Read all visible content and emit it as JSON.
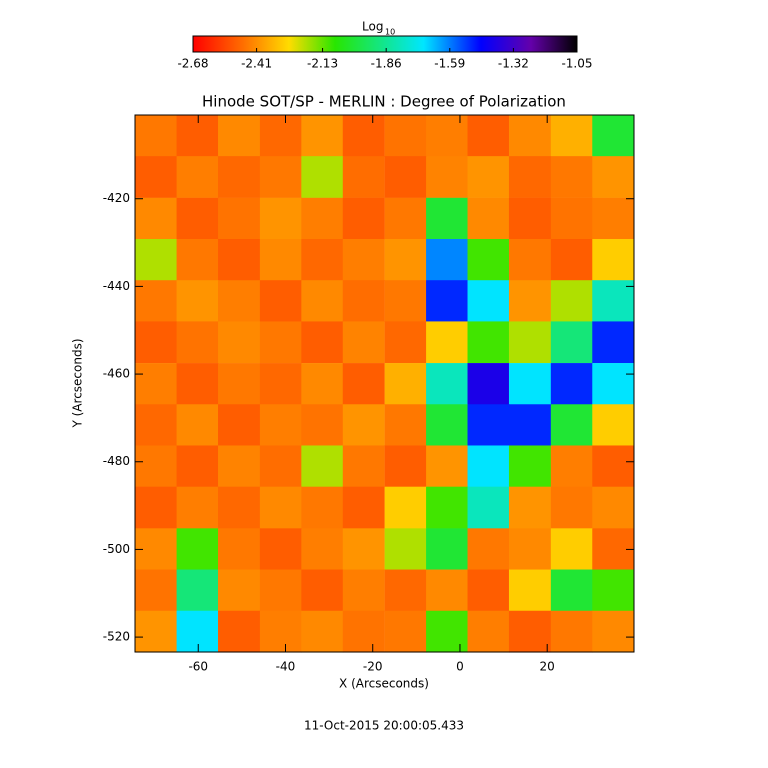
{
  "chart_data": {
    "type": "heatmap",
    "title": "Hinode SOT/SP - MERLIN : Degree of Polarization",
    "x_label": "X (Arcseconds)",
    "y_label": "Y (Arcseconds)",
    "colorbar_label": {
      "base": "Log",
      "subscript": "10"
    },
    "annotation": "11-Oct-2015 20:00:05.433",
    "xlim": [
      -74.5,
      39.9
    ],
    "ylim": [
      -523.4,
      -400.9
    ],
    "xticks": [
      -60,
      -40,
      -20,
      0,
      20
    ],
    "yticks": [
      -420,
      -440,
      -460,
      -480,
      -500,
      -520
    ],
    "clim": [
      -2.68,
      -1.05
    ],
    "cticks": [
      -2.68,
      -2.41,
      -2.13,
      -1.86,
      -1.59,
      -1.32,
      -1.05
    ],
    "x": [
      -69.7,
      -60.2,
      -50.7,
      -41.1,
      -31.6,
      -22.1,
      -12.5,
      -3.0,
      6.5,
      16.0,
      25.6,
      35.1
    ],
    "y": [
      -405.6,
      -415.0,
      -424.5,
      -433.9,
      -443.3,
      -452.7,
      -462.2,
      -471.6,
      -481.0,
      -490.4,
      -499.9,
      -509.3,
      -518.7
    ],
    "z": [
      [
        -2.45,
        -2.5,
        -2.42,
        -2.48,
        -2.4,
        -2.5,
        -2.46,
        -2.44,
        -2.5,
        -2.42,
        -2.35,
        -2.0
      ],
      [
        -2.5,
        -2.44,
        -2.48,
        -2.45,
        -2.2,
        -2.47,
        -2.5,
        -2.43,
        -2.4,
        -2.48,
        -2.45,
        -2.4
      ],
      [
        -2.42,
        -2.5,
        -2.46,
        -2.4,
        -2.44,
        -2.5,
        -2.45,
        -2.0,
        -2.42,
        -2.5,
        -2.46,
        -2.44
      ],
      [
        -2.2,
        -2.45,
        -2.5,
        -2.42,
        -2.48,
        -2.44,
        -2.4,
        -1.6,
        -2.1,
        -2.45,
        -2.5,
        -2.3
      ],
      [
        -2.45,
        -2.4,
        -2.44,
        -2.5,
        -2.42,
        -2.47,
        -2.45,
        -1.5,
        -1.7,
        -2.4,
        -2.2,
        -1.8
      ],
      [
        -2.5,
        -2.46,
        -2.42,
        -2.45,
        -2.5,
        -2.43,
        -2.48,
        -2.3,
        -2.1,
        -2.2,
        -1.9,
        -1.5
      ],
      [
        -2.44,
        -2.5,
        -2.45,
        -2.48,
        -2.42,
        -2.5,
        -2.35,
        -1.8,
        -1.4,
        -1.7,
        -1.5,
        -1.7
      ],
      [
        -2.48,
        -2.42,
        -2.5,
        -2.44,
        -2.46,
        -2.4,
        -2.45,
        -2.0,
        -1.5,
        -1.5,
        -2.0,
        -2.3
      ],
      [
        -2.45,
        -2.5,
        -2.43,
        -2.47,
        -2.2,
        -2.45,
        -2.5,
        -2.4,
        -1.7,
        -2.1,
        -2.44,
        -2.5
      ],
      [
        -2.5,
        -2.44,
        -2.48,
        -2.42,
        -2.45,
        -2.5,
        -2.3,
        -2.1,
        -1.8,
        -2.4,
        -2.45,
        -2.42
      ],
      [
        -2.42,
        -2.1,
        -2.45,
        -2.5,
        -2.44,
        -2.4,
        -2.2,
        -2.0,
        -2.45,
        -2.42,
        -2.3,
        -2.48
      ],
      [
        -2.46,
        -1.9,
        -2.42,
        -2.45,
        -2.5,
        -2.44,
        -2.48,
        -2.42,
        -2.5,
        -2.3,
        -2.0,
        -2.1
      ],
      [
        -2.4,
        -1.7,
        -2.5,
        -2.44,
        -2.42,
        -2.46,
        -2.45,
        -2.1,
        -2.44,
        -2.5,
        -2.45,
        -2.42
      ]
    ]
  }
}
